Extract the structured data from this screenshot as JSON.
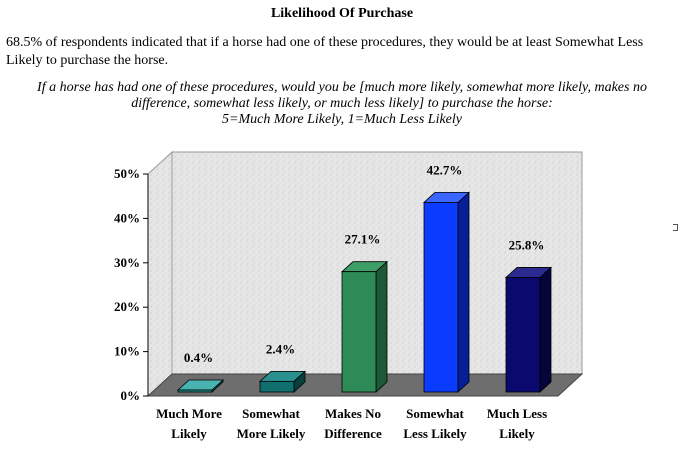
{
  "page": {
    "heading": "Likelihood Of Purchase",
    "summary": "68.5% of respondents indicated that if a horse had one of these procedures, they would be at least Somewhat Less Likely to purchase the horse.",
    "question_line1": "If a horse has had one of these procedures, would you be [much more likely, somewhat more likely, makes no",
    "question_line2": "difference, somewhat less likely, or much less likely] to purchase the horse:",
    "question_line3": "5=Much More Likely, 1=Much Less Likely"
  },
  "chart_data": {
    "type": "bar",
    "title": "",
    "xlabel": "",
    "ylabel": "",
    "categories": [
      [
        "Much More",
        "Likely"
      ],
      [
        "Somewhat",
        "More Likely"
      ],
      [
        "Makes No",
        "Difference"
      ],
      [
        "Somewhat",
        "Less Likely"
      ],
      [
        "Much Less",
        "Likely"
      ]
    ],
    "values": [
      0.4,
      2.4,
      27.1,
      42.7,
      25.8
    ],
    "value_labels": [
      "0.4%",
      "2.4%",
      "27.1%",
      "42.7%",
      "25.8%"
    ],
    "yticks": [
      "0%",
      "10%",
      "20%",
      "30%",
      "40%",
      "50%"
    ],
    "ylim": [
      0,
      50
    ],
    "grid": false,
    "legend": "none",
    "three_d": true,
    "bar_colors": [
      "#1f8f8c",
      "#0f6f6e",
      "#2e8b57",
      "#0a3cff",
      "#0a0a6e"
    ],
    "bar_side_colors": [
      "#0e5553",
      "#073f3e",
      "#1c5a37",
      "#061f99",
      "#05053a"
    ],
    "bar_top_colors": [
      "#48b3b0",
      "#2a8f8d",
      "#3d9e68",
      "#3b66ff",
      "#2a2a90"
    ],
    "plot_wall_color": "#e4e4e4",
    "floor_color": "#6e6e6e"
  }
}
